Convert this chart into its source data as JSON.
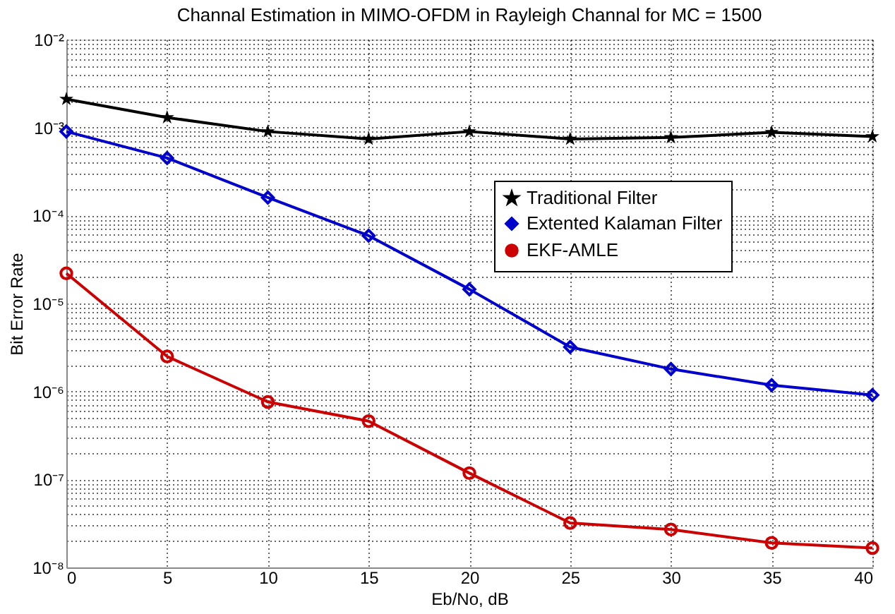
{
  "chart_data": {
    "type": "line",
    "title": "Channal Estimation in MIMO-OFDM in Rayleigh Channal for MC = 1500",
    "xlabel": "Eb/No, dB",
    "ylabel": "Bit Error Rate",
    "x": [
      0,
      5,
      10,
      15,
      20,
      25,
      30,
      35,
      40
    ],
    "series": [
      {
        "name": "Traditional Filter",
        "color": "#000000",
        "marker": "star",
        "values": [
          0.0021,
          0.0013,
          0.0009,
          0.00074,
          0.0009,
          0.00074,
          0.00077,
          0.00088,
          0.00079
        ]
      },
      {
        "name": "Extented Kalaman Filter",
        "color": "#0000cc",
        "marker": "diamond",
        "values": [
          0.0009,
          0.00045,
          0.00016,
          5.9e-05,
          1.45e-05,
          3.2e-06,
          1.8e-06,
          1.18e-06,
          9.1e-07
        ]
      },
      {
        "name": "EKF-AMLE",
        "color": "#cc0000",
        "marker": "circle",
        "values": [
          2.2e-05,
          2.5e-06,
          7.6e-07,
          4.6e-07,
          1.18e-07,
          3.2e-08,
          2.7e-08,
          1.9e-08,
          1.66e-08
        ]
      }
    ],
    "log": "y",
    "xlim": [
      0,
      40
    ],
    "ylim": [
      1e-08,
      0.01
    ],
    "xticks": [
      0,
      5,
      10,
      15,
      20,
      25,
      30,
      35,
      40
    ],
    "yticks": [
      {
        "value": 1e-08,
        "label": "10⁻⁸"
      },
      {
        "value": 2e-08,
        "label": null
      },
      {
        "value": 3e-08,
        "label": null
      },
      {
        "value": 4e-08,
        "label": null
      },
      {
        "value": 5e-08,
        "label": null
      },
      {
        "value": 6e-08,
        "label": null
      },
      {
        "value": 7e-08,
        "label": null
      },
      {
        "value": 8e-08,
        "label": null
      },
      {
        "value": 9e-08,
        "label": null
      },
      {
        "value": 1e-07,
        "label": "10⁻⁷"
      },
      {
        "value": 2e-07,
        "label": null
      },
      {
        "value": 3e-07,
        "label": null
      },
      {
        "value": 4e-07,
        "label": null
      },
      {
        "value": 5e-07,
        "label": null
      },
      {
        "value": 6e-07,
        "label": null
      },
      {
        "value": 7e-07,
        "label": null
      },
      {
        "value": 8e-07,
        "label": null
      },
      {
        "value": 9e-07,
        "label": null
      },
      {
        "value": 1e-06,
        "label": "10⁻⁶"
      },
      {
        "value": 2e-06,
        "label": null
      },
      {
        "value": 3e-06,
        "label": null
      },
      {
        "value": 4e-06,
        "label": null
      },
      {
        "value": 5e-06,
        "label": null
      },
      {
        "value": 6e-06,
        "label": null
      },
      {
        "value": 7e-06,
        "label": null
      },
      {
        "value": 8e-06,
        "label": null
      },
      {
        "value": 9e-06,
        "label": null
      },
      {
        "value": 1e-05,
        "label": "10⁻⁵"
      },
      {
        "value": 2e-05,
        "label": null
      },
      {
        "value": 3e-05,
        "label": null
      },
      {
        "value": 4e-05,
        "label": null
      },
      {
        "value": 5e-05,
        "label": null
      },
      {
        "value": 6e-05,
        "label": null
      },
      {
        "value": 7e-05,
        "label": null
      },
      {
        "value": 8e-05,
        "label": null
      },
      {
        "value": 9e-05,
        "label": null
      },
      {
        "value": 0.0001,
        "label": "10⁻⁴"
      },
      {
        "value": 0.0002,
        "label": null
      },
      {
        "value": 0.0003,
        "label": null
      },
      {
        "value": 0.0004,
        "label": null
      },
      {
        "value": 0.0005,
        "label": null
      },
      {
        "value": 0.0006,
        "label": null
      },
      {
        "value": 0.0007,
        "label": null
      },
      {
        "value": 0.0008,
        "label": null
      },
      {
        "value": 0.0009,
        "label": null
      },
      {
        "value": 0.001,
        "label": "10⁻³"
      },
      {
        "value": 0.002,
        "label": null
      },
      {
        "value": 0.003,
        "label": null
      },
      {
        "value": 0.004,
        "label": null
      },
      {
        "value": 0.005,
        "label": null
      },
      {
        "value": 0.006,
        "label": null
      },
      {
        "value": 0.007,
        "label": null
      },
      {
        "value": 0.008,
        "label": null
      },
      {
        "value": 0.009,
        "label": null
      },
      {
        "value": 0.01,
        "label": "10⁻²"
      }
    ],
    "grid": true,
    "legend": "top right",
    "line_style": "solid"
  }
}
